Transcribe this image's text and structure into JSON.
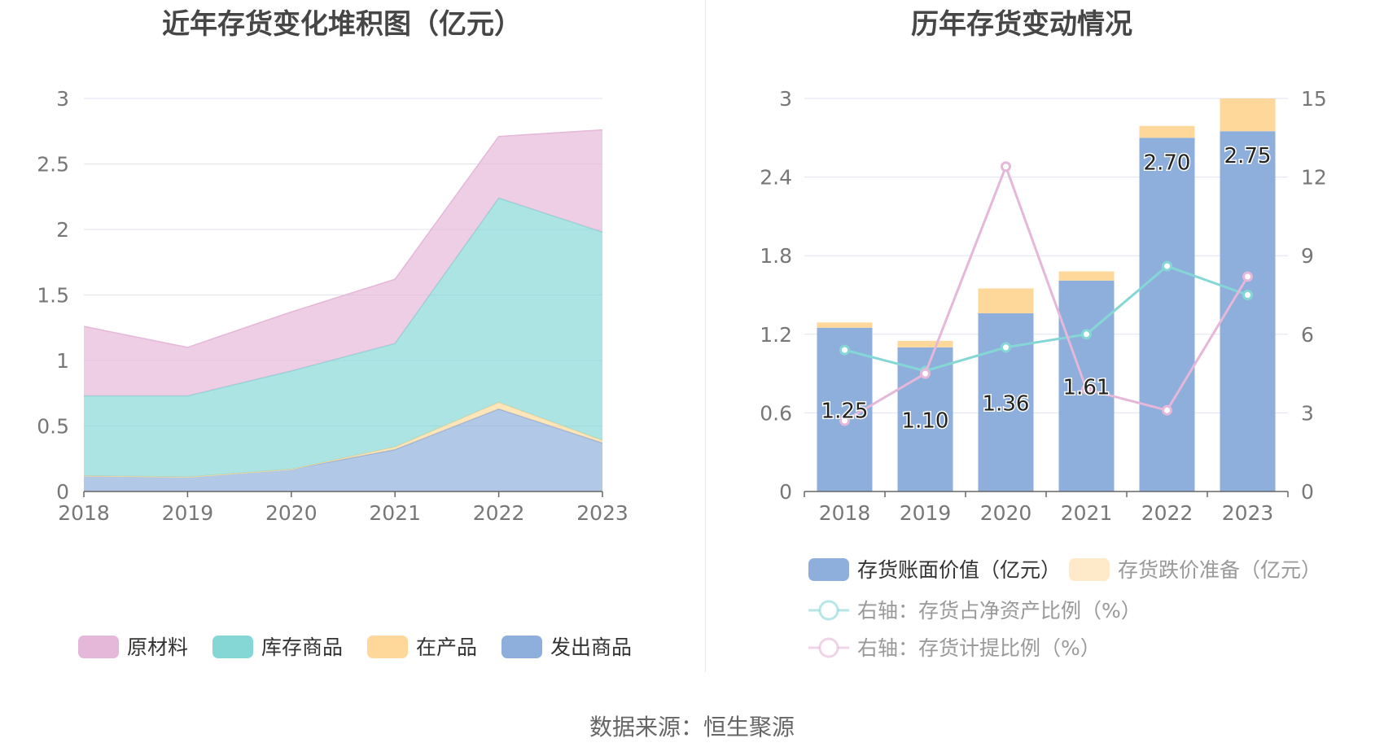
{
  "source_note": "数据来源：恒生聚源",
  "chart_data": [
    {
      "type": "area",
      "title": "近年存货变化堆积图（亿元）",
      "categories": [
        "2018",
        "2019",
        "2020",
        "2021",
        "2022",
        "2023"
      ],
      "ylim": [
        0,
        3
      ],
      "y_ticks": [
        "0",
        "0.5",
        "1",
        "1.5",
        "2",
        "2.5",
        "3"
      ],
      "stacked": true,
      "grid": true,
      "legend_position": "bottom",
      "series": [
        {
          "name": "发出商品",
          "color": "#8eaedc",
          "values": [
            0.12,
            0.11,
            0.17,
            0.32,
            0.63,
            0.37
          ]
        },
        {
          "name": "在产品",
          "color": "#fdd89a",
          "values": [
            0.0,
            0.0,
            0.0,
            0.02,
            0.05,
            0.02
          ]
        },
        {
          "name": "库存商品",
          "color": "#85d7d6",
          "values": [
            0.61,
            0.62,
            0.75,
            0.79,
            1.56,
            1.59
          ]
        },
        {
          "name": "原材料",
          "color": "#e5b7d8",
          "values": [
            0.53,
            0.37,
            0.45,
            0.49,
            0.47,
            0.78
          ]
        }
      ]
    },
    {
      "type": "bar",
      "title": "历年存货变动情况",
      "categories": [
        "2018",
        "2019",
        "2020",
        "2021",
        "2022",
        "2023"
      ],
      "ylim": [
        0,
        3
      ],
      "y_ticks": [
        "0",
        "0.6",
        "1.2",
        "1.8",
        "2.4",
        "3"
      ],
      "y2lim": [
        0,
        15
      ],
      "y2_ticks": [
        "0",
        "3",
        "6",
        "9",
        "12",
        "15"
      ],
      "stacked": true,
      "grid": true,
      "legend_position": "bottom",
      "series": [
        {
          "name": "存货账面价值（亿元）",
          "kind": "bar",
          "color": "#8eaedc",
          "values": [
            1.25,
            1.1,
            1.36,
            1.61,
            2.7,
            2.75
          ],
          "labels": [
            "1.25",
            "1.10",
            "1.36",
            "1.61",
            "2.70",
            "2.75"
          ]
        },
        {
          "name": "存货跌价准备（亿元）",
          "kind": "bar",
          "color": "#fdd89a",
          "values": [
            0.04,
            0.05,
            0.19,
            0.07,
            0.09,
            0.25
          ]
        },
        {
          "name": "右轴：存货占净资产比例（%）",
          "kind": "line",
          "axis": "right",
          "color": "#85d7d6",
          "values": [
            5.4,
            4.6,
            5.5,
            6.0,
            8.6,
            7.5
          ]
        },
        {
          "name": "右轴：存货计提比例（%）",
          "kind": "line",
          "axis": "right",
          "color": "#e5b7d8",
          "values": [
            2.7,
            4.5,
            12.4,
            3.9,
            3.1,
            8.2
          ]
        }
      ]
    }
  ]
}
